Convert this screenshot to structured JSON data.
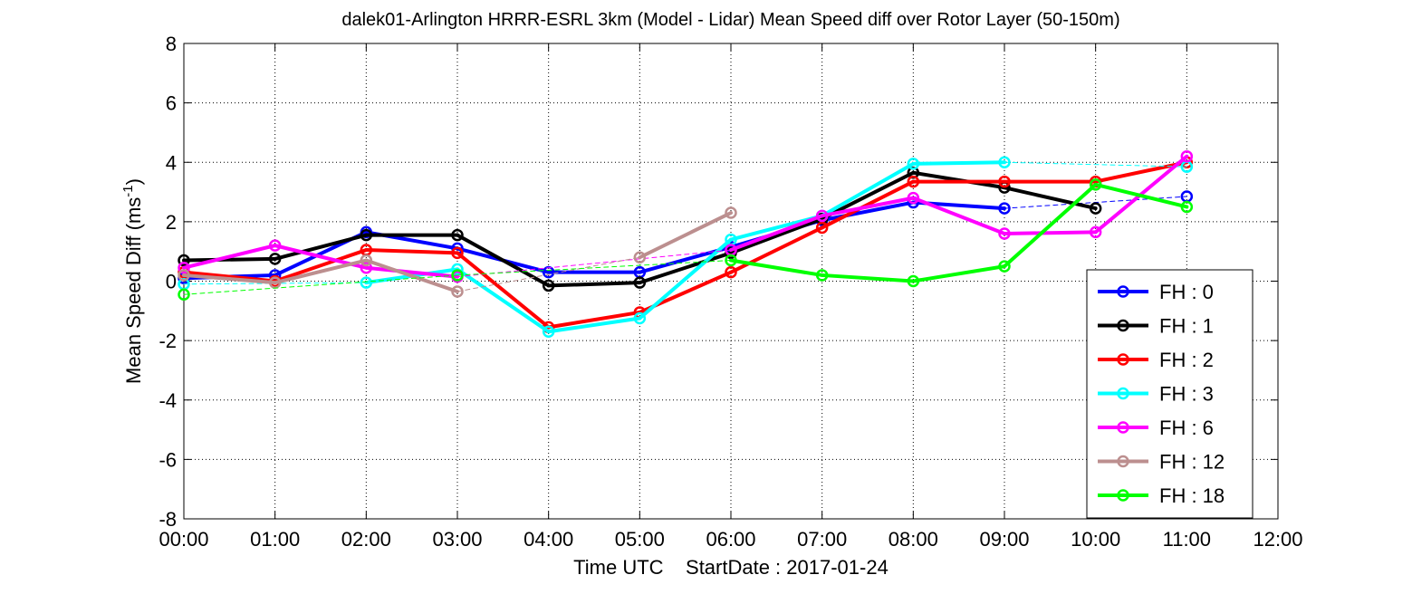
{
  "chart_data": {
    "type": "line",
    "title": "dalek01-Arlington HRRR-ESRL 3km (Model - Lidar) Mean Speed diff over Rotor Layer (50-150m)",
    "xlabel": "Time UTC    StartDate : 2017-01-24",
    "ylabel": "Mean Speed Diff (ms",
    "ylabel_sup": "-1",
    "ylabel_close": ")",
    "xlim": [
      0,
      12
    ],
    "ylim": [
      -8,
      8
    ],
    "grid": true,
    "x_ticks": [
      0,
      1,
      2,
      3,
      4,
      5,
      6,
      7,
      8,
      9,
      10,
      11,
      12
    ],
    "x_tick_labels": [
      "00:00",
      "01:00",
      "02:00",
      "03:00",
      "04:00",
      "05:00",
      "06:00",
      "07:00",
      "08:00",
      "09:00",
      "10:00",
      "11:00",
      "12:00"
    ],
    "y_ticks": [
      -8,
      -6,
      -4,
      -2,
      0,
      2,
      4,
      6,
      8
    ],
    "y_tick_labels": [
      "-8",
      "-6",
      "-4",
      "-2",
      "0",
      "2",
      "4",
      "6",
      "8"
    ],
    "legend_position": "bottom-right",
    "series": [
      {
        "name": "FH : 0",
        "color": "#0000ff",
        "points": [
          [
            0,
            0.1
          ],
          [
            1,
            0.2
          ],
          [
            2,
            1.65
          ],
          [
            3,
            1.1
          ],
          [
            4,
            0.3
          ],
          [
            5,
            0.3
          ],
          [
            6,
            1.15
          ],
          [
            7,
            2.05
          ],
          [
            8,
            2.65
          ],
          [
            9,
            2.45
          ],
          [
            11,
            2.85
          ]
        ],
        "gaps": [
          [
            9,
            11
          ]
        ]
      },
      {
        "name": "FH : 1",
        "color": "#000000",
        "points": [
          [
            0,
            0.7
          ],
          [
            1,
            0.75
          ],
          [
            2,
            1.55
          ],
          [
            3,
            1.55
          ],
          [
            4,
            -0.15
          ],
          [
            5,
            -0.05
          ],
          [
            6,
            0.95
          ],
          [
            7,
            2.1
          ],
          [
            8,
            3.65
          ],
          [
            9,
            3.15
          ],
          [
            10,
            2.45
          ]
        ],
        "gaps": []
      },
      {
        "name": "FH : 2",
        "color": "#ff0000",
        "points": [
          [
            0,
            0.3
          ],
          [
            1,
            0.0
          ],
          [
            2,
            1.05
          ],
          [
            3,
            0.95
          ],
          [
            4,
            -1.55
          ],
          [
            5,
            -1.05
          ],
          [
            6,
            0.3
          ],
          [
            7,
            1.8
          ],
          [
            8,
            3.35
          ],
          [
            9,
            3.35
          ],
          [
            10,
            3.35
          ],
          [
            11,
            4.0
          ]
        ],
        "gaps": []
      },
      {
        "name": "FH : 3",
        "color": "#00ffff",
        "points": [
          [
            0,
            -0.1
          ],
          [
            2,
            -0.05
          ],
          [
            3,
            0.4
          ],
          [
            4,
            -1.7
          ],
          [
            5,
            -1.25
          ],
          [
            6,
            1.4
          ],
          [
            7,
            2.2
          ],
          [
            8,
            3.95
          ],
          [
            9,
            4.0
          ],
          [
            11,
            3.85
          ]
        ],
        "gaps": [
          [
            0,
            2
          ],
          [
            9,
            11
          ]
        ]
      },
      {
        "name": "FH : 6",
        "color": "#ff00ff",
        "points": [
          [
            0,
            0.45
          ],
          [
            1,
            1.2
          ],
          [
            2,
            0.45
          ],
          [
            3,
            0.15
          ],
          [
            6,
            1.05
          ],
          [
            7,
            2.2
          ],
          [
            8,
            2.8
          ],
          [
            9,
            1.6
          ],
          [
            10,
            1.65
          ],
          [
            11,
            4.2
          ]
        ],
        "gaps": [
          [
            3,
            6
          ]
        ]
      },
      {
        "name": "FH : 12",
        "color": "#bc8f8f",
        "points": [
          [
            0,
            0.2
          ],
          [
            1,
            -0.05
          ],
          [
            2,
            0.7
          ],
          [
            3,
            -0.35
          ],
          [
            5,
            0.8
          ],
          [
            6,
            2.3
          ]
        ],
        "gaps": [
          [
            3,
            5
          ]
        ]
      },
      {
        "name": "FH : 18",
        "color": "#00ff00",
        "points": [
          [
            0,
            -0.45
          ],
          [
            3,
            0.2
          ],
          [
            6,
            0.7
          ],
          [
            7,
            0.2
          ],
          [
            8,
            0.0
          ],
          [
            9,
            0.5
          ],
          [
            10,
            3.25
          ],
          [
            11,
            2.5
          ]
        ],
        "gaps": [
          [
            0,
            3
          ],
          [
            3,
            6
          ]
        ]
      }
    ]
  }
}
